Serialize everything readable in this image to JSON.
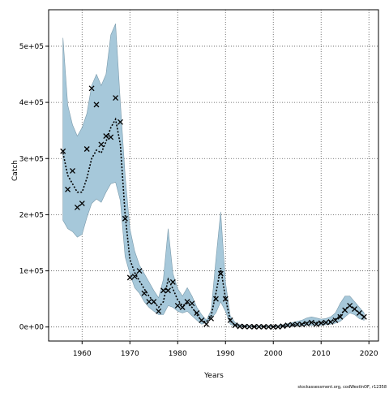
{
  "chart_data": {
    "type": "line",
    "title": "",
    "xlabel": "Years",
    "ylabel": "Catch",
    "xlim": [
      1953,
      2022
    ],
    "ylim": [
      -25000,
      565000
    ],
    "xticks": [
      1960,
      1970,
      1980,
      1990,
      2000,
      2010,
      2020
    ],
    "yticks": [
      0,
      100000,
      200000,
      300000,
      400000,
      500000
    ],
    "ytick_labels": [
      "0e+00",
      "1e+05",
      "2e+05",
      "3e+05",
      "4e+05",
      "5e+05"
    ],
    "grid": true,
    "colors": {
      "band_fill": "#a6c8da",
      "band_stroke": "#7a9aab",
      "estimate_line": "#000000",
      "observed_marker": "#000000"
    },
    "x": [
      1956,
      1957,
      1958,
      1959,
      1960,
      1961,
      1962,
      1963,
      1964,
      1965,
      1966,
      1967,
      1968,
      1969,
      1970,
      1971,
      1972,
      1973,
      1974,
      1975,
      1976,
      1977,
      1978,
      1979,
      1980,
      1981,
      1982,
      1983,
      1984,
      1985,
      1986,
      1987,
      1988,
      1989,
      1990,
      1991,
      1992,
      1993,
      1994,
      1995,
      1996,
      1997,
      1998,
      1999,
      2000,
      2001,
      2002,
      2003,
      2004,
      2005,
      2006,
      2007,
      2008,
      2009,
      2010,
      2011,
      2012,
      2013,
      2014,
      2015,
      2016,
      2017,
      2018,
      2019
    ],
    "series": [
      {
        "kind": "band",
        "lower": [
          190000,
          175000,
          170000,
          160000,
          165000,
          195000,
          220000,
          228000,
          222000,
          240000,
          255000,
          258000,
          225000,
          125000,
          95000,
          70000,
          60000,
          45000,
          35000,
          28000,
          22000,
          22000,
          38000,
          35000,
          28000,
          25000,
          28000,
          20000,
          12000,
          5000,
          8000,
          15000,
          25000,
          45000,
          28000,
          5000,
          1000,
          500,
          500,
          500,
          300,
          300,
          300,
          300,
          300,
          300,
          500,
          1000,
          1500,
          2000,
          2500,
          3000,
          3000,
          3000,
          3000,
          4000,
          5000,
          7000,
          10000,
          18000,
          25000,
          22000,
          15000,
          12000
        ],
        "upper": [
          515000,
          395000,
          360000,
          340000,
          355000,
          380000,
          430000,
          450000,
          430000,
          450000,
          520000,
          540000,
          400000,
          270000,
          175000,
          135000,
          110000,
          95000,
          80000,
          65000,
          52000,
          85000,
          175000,
          95000,
          68000,
          55000,
          70000,
          55000,
          35000,
          22000,
          12000,
          30000,
          120000,
          205000,
          80000,
          20000,
          8000,
          4000,
          3000,
          2500,
          2000,
          2000,
          2000,
          2000,
          2000,
          2500,
          4000,
          6000,
          8000,
          10000,
          12000,
          16000,
          18000,
          16000,
          14000,
          15000,
          18000,
          25000,
          42000,
          55000,
          55000,
          45000,
          35000,
          25000
        ]
      },
      {
        "kind": "estimate",
        "y": [
          310000,
          270000,
          255000,
          240000,
          240000,
          265000,
          300000,
          315000,
          310000,
          330000,
          355000,
          370000,
          325000,
          200000,
          120000,
          97000,
          82000,
          68000,
          55000,
          45000,
          35000,
          45000,
          85000,
          68000,
          48000,
          38000,
          42000,
          35000,
          22000,
          11000,
          9000,
          20000,
          60000,
          105000,
          52000,
          11000,
          3000,
          1000,
          800,
          700,
          500,
          500,
          500,
          500,
          500,
          800,
          1500,
          2500,
          3500,
          4500,
          5500,
          7500,
          8500,
          8000,
          7500,
          8000,
          10000,
          14000,
          20000,
          32000,
          38000,
          32000,
          25000,
          18000
        ]
      },
      {
        "kind": "observed",
        "y": [
          313000,
          245000,
          278000,
          213000,
          220000,
          317000,
          425000,
          396000,
          325000,
          340000,
          338000,
          408000,
          365000,
          193000,
          88000,
          90000,
          100000,
          60000,
          45000,
          45000,
          28000,
          65000,
          65000,
          80000,
          38000,
          35000,
          45000,
          42000,
          25000,
          12000,
          5000,
          15000,
          50000,
          95000,
          50000,
          12000,
          3000,
          1000,
          800,
          600,
          500,
          500,
          400,
          300,
          300,
          300,
          1500,
          3000,
          4000,
          4500,
          4500,
          6000,
          8000,
          5000,
          7000,
          8000,
          9000,
          12000,
          18000,
          30000,
          38000,
          32000,
          25000,
          18000
        ]
      }
    ]
  },
  "footnote": "stockassessment.org, codWestInOF, r12358"
}
